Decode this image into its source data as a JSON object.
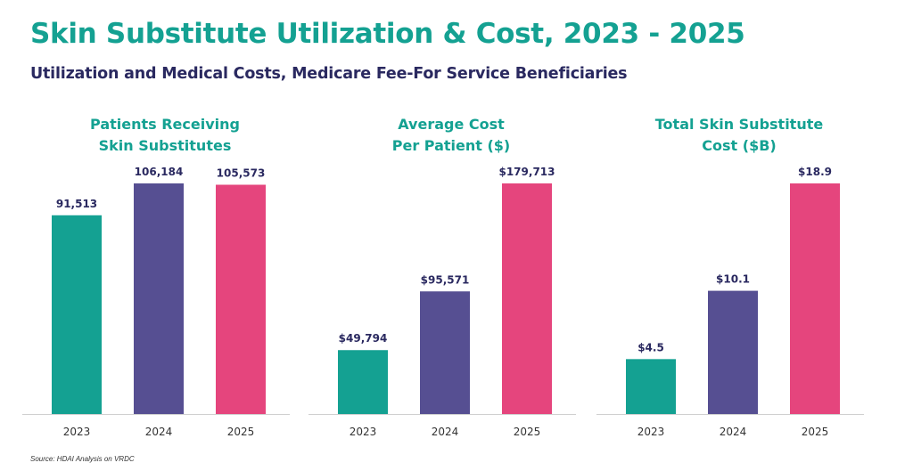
{
  "header": {
    "title": "Skin Substitute Utilization & Cost, 2023 - 2025",
    "subtitle": "Utilization and Medical Costs, Medicare Fee-For Service Beneficiaries"
  },
  "source": "Source: HDAI Analysis on VRDC",
  "colors": {
    "teal": "#14a192",
    "purple": "#564f92",
    "pink": "#e5457d",
    "navy": "#2a2960"
  },
  "chart_data": [
    {
      "type": "bar",
      "title_lines": [
        "Patients Receiving",
        "Skin Substitutes"
      ],
      "categories": [
        "2023",
        "2024",
        "2025"
      ],
      "values": [
        91513,
        106184,
        105573
      ],
      "value_labels": [
        "91,513",
        "106,184",
        "105,573"
      ],
      "ylim": [
        0,
        106184
      ]
    },
    {
      "type": "bar",
      "title_lines": [
        "Average Cost",
        "Per Patient ($)"
      ],
      "categories": [
        "2023",
        "2024",
        "2025"
      ],
      "values": [
        49794,
        95571,
        179713
      ],
      "value_labels": [
        "$49,794",
        "$95,571",
        "$179,713"
      ],
      "ylim": [
        0,
        179713
      ]
    },
    {
      "type": "bar",
      "title_lines": [
        "Total Skin Substitute",
        "Cost ($B)"
      ],
      "categories": [
        "2023",
        "2024",
        "2025"
      ],
      "values": [
        4.5,
        10.1,
        18.9
      ],
      "value_labels": [
        "$4.5",
        "$10.1",
        "$18.9"
      ],
      "ylim": [
        0,
        18.9
      ]
    }
  ]
}
